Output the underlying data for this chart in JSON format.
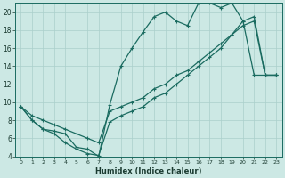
{
  "xlabel": "Humidex (Indice chaleur)",
  "bg_color": "#cce8e4",
  "grid_color": "#aacfcb",
  "line_color": "#1a6b60",
  "xlim": [
    -0.5,
    23.5
  ],
  "ylim": [
    4,
    21
  ],
  "xticks": [
    0,
    1,
    2,
    3,
    4,
    5,
    6,
    7,
    8,
    9,
    10,
    11,
    12,
    13,
    14,
    15,
    16,
    17,
    18,
    19,
    20,
    21,
    22,
    23
  ],
  "yticks": [
    4,
    6,
    8,
    10,
    12,
    14,
    16,
    18,
    20
  ],
  "line1_x": [
    0,
    1,
    2,
    3,
    4,
    5,
    6,
    7,
    8,
    9,
    10,
    11,
    12,
    13,
    14,
    15,
    16,
    17,
    18,
    19,
    20,
    21,
    22,
    23
  ],
  "line1_y": [
    9.5,
    8,
    7,
    6.8,
    6.5,
    5.0,
    4.8,
    4.0,
    9.7,
    14,
    16,
    17.8,
    19.5,
    20,
    19,
    18.5,
    21,
    21,
    20.5,
    21,
    19,
    13,
    13,
    13
  ],
  "line2_x": [
    0,
    1,
    2,
    3,
    4,
    5,
    6,
    7,
    8,
    9,
    10,
    11,
    12,
    13,
    14,
    15,
    16,
    17,
    18,
    19,
    20,
    21,
    22,
    23
  ],
  "line2_y": [
    9.5,
    8.5,
    8,
    7.5,
    7,
    6.5,
    6,
    5.5,
    9,
    9.5,
    10,
    10.5,
    11.5,
    12,
    13,
    13.5,
    14.5,
    15.5,
    16.5,
    17.5,
    19,
    19.5,
    13,
    13
  ],
  "line3_x": [
    0,
    1,
    2,
    3,
    4,
    5,
    6,
    7,
    8,
    9,
    10,
    11,
    12,
    13,
    14,
    15,
    16,
    17,
    18,
    19,
    20,
    21,
    22,
    23
  ],
  "line3_y": [
    9.5,
    8,
    7,
    6.5,
    5.5,
    4.8,
    4.3,
    4.1,
    7.8,
    8.5,
    9,
    9.5,
    10.5,
    11,
    12,
    13,
    14,
    15,
    16,
    17.5,
    18.5,
    19,
    13,
    13
  ]
}
